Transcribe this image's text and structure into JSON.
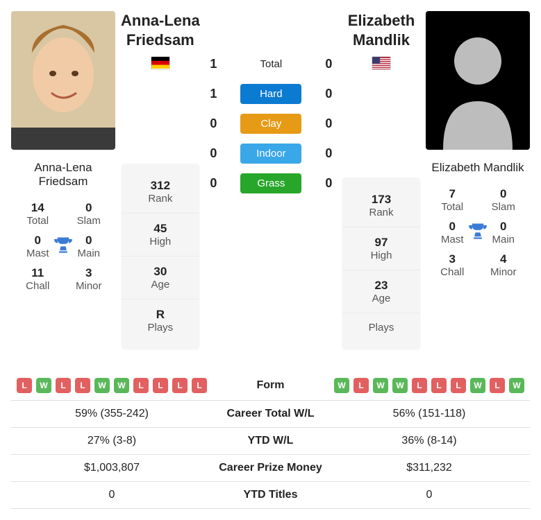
{
  "labels": {
    "rank": "Rank",
    "high": "High",
    "age": "Age",
    "plays": "Plays",
    "total": "Total",
    "slam": "Slam",
    "mast": "Mast",
    "main": "Main",
    "chall": "Chall",
    "minor": "Minor",
    "form": "Form",
    "career_wl": "Career Total W/L",
    "ytd_wl": "YTD W/L",
    "prize": "Career Prize Money",
    "ytd_titles": "YTD Titles"
  },
  "h2h": {
    "rows": [
      {
        "left": "1",
        "label": "Total",
        "right": "0",
        "bg": "transparent",
        "fg": "#222"
      },
      {
        "left": "1",
        "label": "Hard",
        "right": "0",
        "bg": "#0b7ad1",
        "fg": "#fff"
      },
      {
        "left": "0",
        "label": "Clay",
        "right": "0",
        "bg": "#e69a16",
        "fg": "#fff"
      },
      {
        "left": "0",
        "label": "Indoor",
        "right": "0",
        "bg": "#3aa7e8",
        "fg": "#fff"
      },
      {
        "left": "0",
        "label": "Grass",
        "right": "0",
        "bg": "#27a62a",
        "fg": "#fff"
      }
    ]
  },
  "left": {
    "name": "Anna-Lena Friedsam",
    "first": "Anna-Lena",
    "last": "Friedsam",
    "flag": "de",
    "rank": "312",
    "high": "45",
    "age": "30",
    "plays": "R",
    "titles": {
      "total": "14",
      "slam": "0",
      "mast": "0",
      "main": "0",
      "chall": "11",
      "minor": "3"
    },
    "form": [
      "L",
      "W",
      "L",
      "L",
      "W",
      "W",
      "L",
      "L",
      "L",
      "L"
    ],
    "career_wl": "59% (355-242)",
    "ytd_wl": "27% (3-8)",
    "prize": "$1,003,807",
    "ytd_titles": "0"
  },
  "right": {
    "name": "Elizabeth Mandlik",
    "first": "Elizabeth",
    "last": "Mandlik",
    "flag": "us",
    "rank": "173",
    "high": "97",
    "age": "23",
    "plays": "",
    "titles": {
      "total": "7",
      "slam": "0",
      "mast": "0",
      "main": "0",
      "chall": "3",
      "minor": "4"
    },
    "form": [
      "W",
      "L",
      "W",
      "W",
      "L",
      "L",
      "L",
      "W",
      "L",
      "W"
    ],
    "career_wl": "56% (151-118)",
    "ytd_wl": "36% (8-14)",
    "prize": "$311,232",
    "ytd_titles": "0"
  },
  "colors": {
    "W": "#5ab85a",
    "L": "#e26060"
  }
}
